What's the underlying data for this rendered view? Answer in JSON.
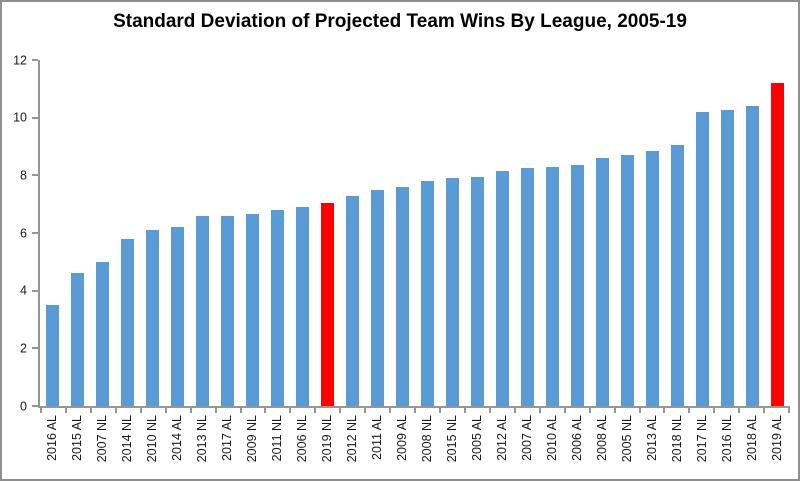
{
  "chart_data": {
    "type": "bar",
    "title": "Standard Deviation of Projected Team Wins By League, 2005-19",
    "xlabel": "",
    "ylabel": "",
    "ylim": [
      0,
      12
    ],
    "yticks": [
      0,
      2,
      4,
      6,
      8,
      10,
      12
    ],
    "grid": "off",
    "legend": "none",
    "categories": [
      "2016 AL",
      "2015 AL",
      "2007 NL",
      "2014 NL",
      "2010 NL",
      "2014 AL",
      "2013 NL",
      "2017 AL",
      "2009 NL",
      "2011 NL",
      "2006 NL",
      "2019 NL",
      "2012 NL",
      "2011 AL",
      "2009 AL",
      "2008 NL",
      "2015 NL",
      "2005 AL",
      "2012 AL",
      "2007 AL",
      "2010 AL",
      "2006 AL",
      "2008 AL",
      "2005 NL",
      "2013 AL",
      "2018 NL",
      "2017 NL",
      "2016 NL",
      "2018 AL",
      "2019 AL"
    ],
    "values": [
      3.5,
      4.6,
      5.0,
      5.8,
      6.1,
      6.2,
      6.6,
      6.6,
      6.65,
      6.8,
      6.9,
      7.05,
      7.3,
      7.5,
      7.6,
      7.8,
      7.9,
      7.95,
      8.15,
      8.25,
      8.3,
      8.35,
      8.6,
      8.7,
      8.85,
      9.05,
      10.2,
      10.25,
      10.4,
      11.2
    ],
    "highlighted_categories": [
      "2019 NL",
      "2019 AL"
    ],
    "colors": {
      "bar": "#5B9BD5",
      "highlight": "#FF0000",
      "axis": "#969696",
      "tick_text": "#1a1a1a",
      "title_text": "#000000",
      "frame_border": "#8e8e8e",
      "background": "#ffffff"
    }
  }
}
